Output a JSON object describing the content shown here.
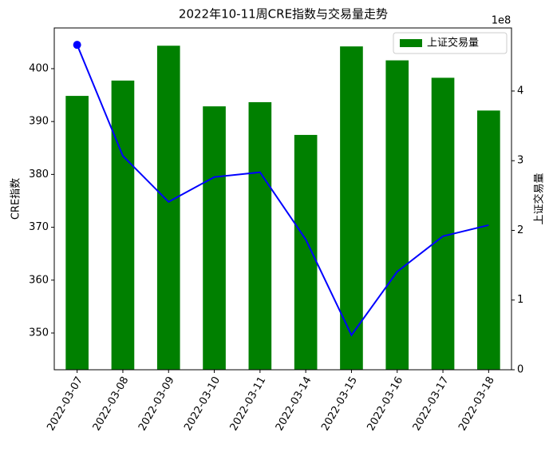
{
  "chart_data": {
    "type": "combo",
    "title": "2022年10-11周CRE指数与交易量走势",
    "categories": [
      "2022-03-07",
      "2022-03-08",
      "2022-03-09",
      "2022-03-10",
      "2022-03-11",
      "2022-03-14",
      "2022-03-15",
      "2022-03-16",
      "2022-03-17",
      "2022-03-18"
    ],
    "series": [
      {
        "type": "bar",
        "name": "上证交易量",
        "color": "#008000",
        "axis": "y2",
        "values": [
          393000000,
          415000000,
          465000000,
          378000000,
          384000000,
          337000000,
          464000000,
          444000000,
          419000000,
          372000000
        ]
      },
      {
        "type": "line",
        "color": "#0000ff",
        "marker_indices": [
          0
        ],
        "values": [
          404.5,
          383.5,
          374.8,
          379.5,
          380.4,
          367.7,
          349.6,
          361.6,
          368.3,
          370.4
        ]
      }
    ],
    "ylabel": "CRE指数",
    "y2label": "上证交易量",
    "y2_offset_label": "1e8",
    "ylim": [
      343.05,
      407.7
    ],
    "yticks": [
      350,
      360,
      370,
      380,
      390,
      400
    ],
    "y2lim": [
      0,
      490500000
    ],
    "y2ticks": [
      {
        "value": 0,
        "label": "0"
      },
      {
        "value": 100000000,
        "label": "1"
      },
      {
        "value": 200000000,
        "label": "2"
      },
      {
        "value": 300000000,
        "label": "3"
      },
      {
        "value": 400000000,
        "label": "4"
      }
    ],
    "legend": "upper right"
  }
}
